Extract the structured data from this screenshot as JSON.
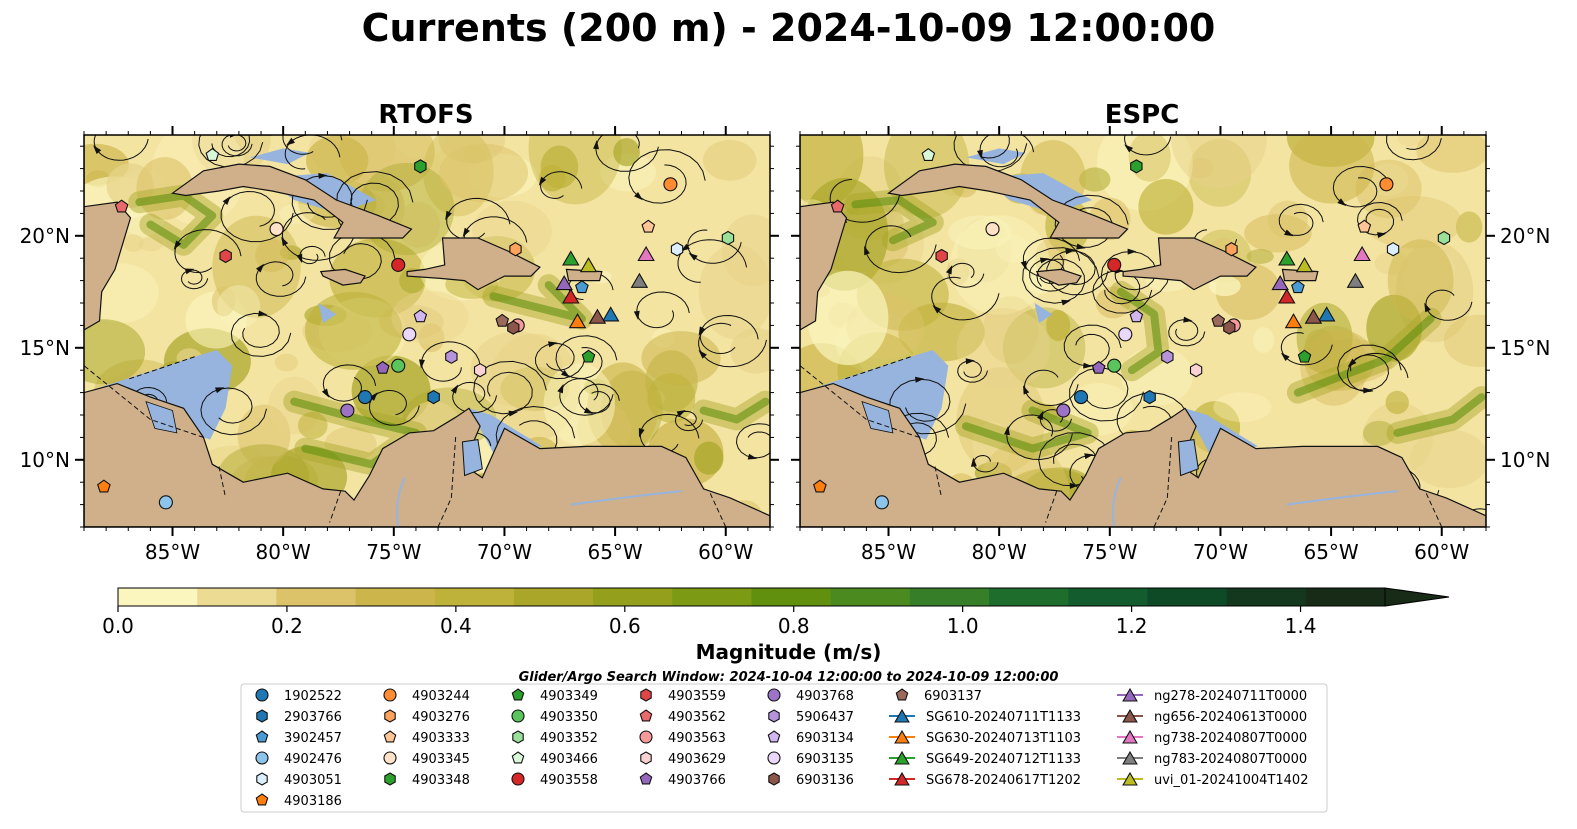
{
  "title": "Currents (200 m) - 2024-10-09 12:00:00",
  "panels": [
    {
      "title": "RTOFS",
      "model": "rtofs"
    },
    {
      "title": "ESPC",
      "model": "espc"
    }
  ],
  "axes": {
    "x_ticks": [
      "85°W",
      "80°W",
      "75°W",
      "70°W",
      "65°W",
      "60°W"
    ],
    "x_values": [
      -85,
      -80,
      -75,
      -70,
      -65,
      -60
    ],
    "y_ticks": [
      "20°N",
      "15°N",
      "10°N"
    ],
    "y_values": [
      20,
      15,
      10
    ],
    "xlim": [
      -89,
      -58
    ],
    "ylim": [
      7,
      24.5
    ]
  },
  "colorbar": {
    "label": "Magnitude (m/s)",
    "ticks": [
      "0.0",
      "0.2",
      "0.4",
      "0.6",
      "0.8",
      "1.0",
      "1.2",
      "1.4"
    ],
    "tick_values": [
      0.0,
      0.2,
      0.4,
      0.6,
      0.8,
      1.0,
      1.2,
      1.4
    ],
    "range": [
      0,
      1.5
    ],
    "colors": [
      "#fbf5be",
      "#ecdb93",
      "#dcc36a",
      "#ccb64c",
      "#bfb23b",
      "#a9a629",
      "#94a01b",
      "#7c9a13",
      "#61900f",
      "#4a8a1f",
      "#367e28",
      "#1f6d2c",
      "#125c2d",
      "#0e4a26",
      "#13381e",
      "#172b17"
    ]
  },
  "legend": {
    "search_window": "Glider/Argo Search Window: 2024-10-04 12:00:00 to 2024-10-09 12:00:00",
    "entries": [
      {
        "label": "1902522",
        "marker": "circle",
        "color": "#1f77b4"
      },
      {
        "label": "2903766",
        "marker": "hexagon",
        "color": "#1f77b4"
      },
      {
        "label": "3902457",
        "marker": "pentagon",
        "color": "#4a9ad4"
      },
      {
        "label": "4902476",
        "marker": "circle",
        "color": "#8dc4ec"
      },
      {
        "label": "4903051",
        "marker": "hexagon",
        "color": "#dceefb"
      },
      {
        "label": "4903186",
        "marker": "pentagon",
        "color": "#ff7f0e"
      },
      {
        "label": "4903244",
        "marker": "circle",
        "color": "#ff8c33"
      },
      {
        "label": "4903276",
        "marker": "hexagon",
        "color": "#ffa35c"
      },
      {
        "label": "4903333",
        "marker": "pentagon",
        "color": "#ffc596"
      },
      {
        "label": "4903345",
        "marker": "circle",
        "color": "#ffe2c8"
      },
      {
        "label": "4903348",
        "marker": "hexagon",
        "color": "#2ca02c"
      },
      {
        "label": "4903349",
        "marker": "pentagon",
        "color": "#2ca02c"
      },
      {
        "label": "4903350",
        "marker": "circle",
        "color": "#5cc45c"
      },
      {
        "label": "4903352",
        "marker": "hexagon",
        "color": "#9ae09a"
      },
      {
        "label": "4903466",
        "marker": "pentagon",
        "color": "#d9f7d9"
      },
      {
        "label": "4903558",
        "marker": "circle",
        "color": "#d62728"
      },
      {
        "label": "4903559",
        "marker": "hexagon",
        "color": "#e04648"
      },
      {
        "label": "4903562",
        "marker": "pentagon",
        "color": "#ea6a6c"
      },
      {
        "label": "4903563",
        "marker": "circle",
        "color": "#f59a9b"
      },
      {
        "label": "4903629",
        "marker": "hexagon",
        "color": "#fbd2d3"
      },
      {
        "label": "4903766",
        "marker": "pentagon",
        "color": "#9467bd"
      },
      {
        "label": "4903768",
        "marker": "circle",
        "color": "#9d73c7"
      },
      {
        "label": "5906437",
        "marker": "hexagon",
        "color": "#b793dc"
      },
      {
        "label": "6903134",
        "marker": "pentagon",
        "color": "#d1b6ef"
      },
      {
        "label": "6903135",
        "marker": "circle",
        "color": "#ead8fb"
      },
      {
        "label": "6903136",
        "marker": "hexagon",
        "color": "#8c564b"
      },
      {
        "label": "6903137",
        "marker": "pentagon",
        "color": "#9c6a5d"
      },
      {
        "label": "SG610-20240711T1133",
        "marker": "triangle",
        "color": "#1f77b4"
      },
      {
        "label": "SG630-20240713T1103",
        "marker": "triangle",
        "color": "#ff7f0e"
      },
      {
        "label": "SG649-20240712T1133",
        "marker": "triangle",
        "color": "#2ca02c"
      },
      {
        "label": "SG678-20240617T1202",
        "marker": "triangle",
        "color": "#d62728"
      },
      {
        "label": "ng278-20240711T0000",
        "marker": "triangle",
        "color": "#9467bd"
      },
      {
        "label": "ng656-20240613T0000",
        "marker": "triangle",
        "color": "#8c564b"
      },
      {
        "label": "ng738-20240807T0000",
        "marker": "triangle",
        "color": "#e377c2"
      },
      {
        "label": "ng783-20240807T0000",
        "marker": "triangle",
        "color": "#7f7f7f"
      },
      {
        "label": "uvi_01-20241004T1402",
        "marker": "triangle",
        "color": "#bcbd22"
      }
    ]
  },
  "chart_data": {
    "type": "map",
    "variable": "current magnitude at 200 m",
    "units": "m/s",
    "observations": [
      {
        "id": "1902522",
        "lon": -76.3,
        "lat": 12.8
      },
      {
        "id": "2903766",
        "lon": -73.2,
        "lat": 12.8
      },
      {
        "id": "3902457",
        "lon": -66.5,
        "lat": 17.7
      },
      {
        "id": "4902476",
        "lon": -85.3,
        "lat": 8.1
      },
      {
        "id": "4903051",
        "lon": -62.2,
        "lat": 19.4
      },
      {
        "id": "4903186",
        "lon": -88.1,
        "lat": 8.8
      },
      {
        "id": "4903244",
        "lon": -62.5,
        "lat": 22.3
      },
      {
        "id": "4903276",
        "lon": -69.5,
        "lat": 19.4
      },
      {
        "id": "4903333",
        "lon": -63.5,
        "lat": 20.4
      },
      {
        "id": "4903345",
        "lon": -80.3,
        "lat": 20.3
      },
      {
        "id": "4903348",
        "lon": -73.8,
        "lat": 23.1
      },
      {
        "id": "4903349",
        "lon": -66.2,
        "lat": 14.6
      },
      {
        "id": "4903350",
        "lon": -74.8,
        "lat": 14.2
      },
      {
        "id": "4903352",
        "lon": -59.9,
        "lat": 19.9
      },
      {
        "id": "4903466",
        "lon": -83.2,
        "lat": 23.6
      },
      {
        "id": "4903558",
        "lon": -74.8,
        "lat": 18.7
      },
      {
        "id": "4903559",
        "lon": -82.6,
        "lat": 19.1
      },
      {
        "id": "4903562",
        "lon": -87.3,
        "lat": 21.3
      },
      {
        "id": "4903563",
        "lon": -69.4,
        "lat": 16.0
      },
      {
        "id": "4903629",
        "lon": -71.1,
        "lat": 14.0
      },
      {
        "id": "4903766",
        "lon": -75.5,
        "lat": 14.1
      },
      {
        "id": "4903768",
        "lon": -77.1,
        "lat": 12.2
      },
      {
        "id": "5906437",
        "lon": -72.4,
        "lat": 14.6
      },
      {
        "id": "6903134",
        "lon": -73.8,
        "lat": 16.4
      },
      {
        "id": "6903135",
        "lon": -74.3,
        "lat": 15.6
      },
      {
        "id": "6903136",
        "lon": -69.6,
        "lat": 15.9
      },
      {
        "id": "6903137",
        "lon": -70.1,
        "lat": 16.2
      },
      {
        "id": "SG610-20240711T1133",
        "lon": -65.2,
        "lat": 16.5
      },
      {
        "id": "SG630-20240713T1103",
        "lon": -66.7,
        "lat": 16.2
      },
      {
        "id": "SG649-20240712T1133",
        "lon": -67.0,
        "lat": 19.0
      },
      {
        "id": "SG678-20240617T1202",
        "lon": -67.0,
        "lat": 17.3
      },
      {
        "id": "ng278-20240711T0000",
        "lon": -67.3,
        "lat": 17.9
      },
      {
        "id": "ng656-20240613T0000",
        "lon": -65.8,
        "lat": 16.4
      },
      {
        "id": "ng738-20240807T0000",
        "lon": -63.6,
        "lat": 19.2
      },
      {
        "id": "ng783-20240807T0000",
        "lon": -63.9,
        "lat": 18.0
      },
      {
        "id": "uvi_01-20241004T1402",
        "lon": -66.2,
        "lat": 18.7
      }
    ]
  }
}
